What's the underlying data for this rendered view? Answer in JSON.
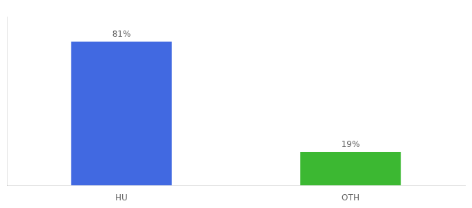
{
  "chart_data": {
    "type": "bar",
    "categories": [
      "HU",
      "OTH"
    ],
    "values": [
      81,
      19
    ],
    "value_labels": [
      "81%",
      "19%"
    ],
    "colors": [
      "#4169e1",
      "#3cb832"
    ],
    "data_labels": true,
    "ylim": [
      0,
      95
    ],
    "tick_labels": "x",
    "grid": false
  }
}
